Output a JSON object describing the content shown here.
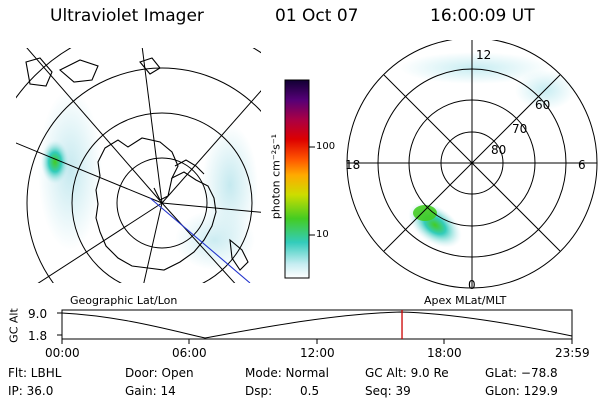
{
  "header": {
    "instrument": "Ultraviolet Imager",
    "date": "01 Oct 07",
    "time": "16:00:09 UT"
  },
  "colorbar": {
    "label": "photon cm⁻²s⁻¹",
    "ticks": [
      "100",
      "10"
    ]
  },
  "geo_panel": {
    "label": "Geographic Lat/Lon"
  },
  "mag_panel": {
    "label": "Apex MLat/MLT",
    "mlt_labels": {
      "top": "12",
      "left": "18",
      "right": "6",
      "bottom": "0"
    },
    "lat_labels": [
      "60",
      "70",
      "80"
    ]
  },
  "altitude_plot": {
    "ylabel": "GC Alt",
    "yticks": [
      "9.0",
      "1.8"
    ],
    "xticks": [
      "00:00",
      "06:00",
      "12:00",
      "18:00",
      "23:59"
    ],
    "current_time_fraction": 0.6667
  },
  "status": {
    "filter": "Flt: LBHL",
    "ip": "IP: 36.0",
    "door": "Door: Open",
    "gain": "Gain: 14",
    "mode": "Mode: Normal",
    "dsp_label": "Dsp:",
    "dsp_value": "0.5",
    "gc_alt": "GC Alt: 9.0 Re",
    "seq": "Seq: 39",
    "glat": "GLat: −78.8",
    "glon": "GLon: 129.9"
  },
  "colors": {
    "marker": "#cc0000",
    "track": "#2233cc",
    "aurora_bright": "#44cc22",
    "aurora_mid": "#33ccbb",
    "aurora_faint": "#bfe7ee"
  }
}
